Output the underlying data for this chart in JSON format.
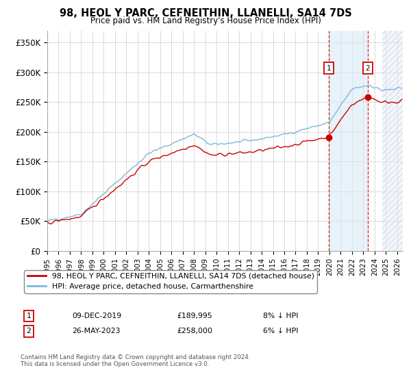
{
  "title": "98, HEOL Y PARC, CEFNEITHIN, LLANELLI, SA14 7DS",
  "subtitle": "Price paid vs. HM Land Registry's House Price Index (HPI)",
  "ylabel_ticks": [
    "£0",
    "£50K",
    "£100K",
    "£150K",
    "£200K",
    "£250K",
    "£300K",
    "£350K"
  ],
  "ytick_values": [
    0,
    50000,
    100000,
    150000,
    200000,
    250000,
    300000,
    350000
  ],
  "ylim": [
    0,
    370000
  ],
  "xlim_start": 1995.0,
  "xlim_end": 2026.5,
  "xtick_years": [
    1995,
    1996,
    1997,
    1998,
    1999,
    2000,
    2001,
    2002,
    2003,
    2004,
    2005,
    2006,
    2007,
    2008,
    2009,
    2010,
    2011,
    2012,
    2013,
    2014,
    2015,
    2016,
    2017,
    2018,
    2019,
    2020,
    2021,
    2022,
    2023,
    2024,
    2025,
    2026
  ],
  "marker1_x": 2019.94,
  "marker1_y": 189995,
  "marker2_x": 2023.4,
  "marker2_y": 258000,
  "marker1_label": "1",
  "marker2_label": "2",
  "marker1_date": "09-DEC-2019",
  "marker1_price": "£189,995",
  "marker1_hpi": "8% ↓ HPI",
  "marker2_date": "26-MAY-2023",
  "marker2_price": "£258,000",
  "marker2_hpi": "6% ↓ HPI",
  "hpi_line_color": "#7ab8d9",
  "sale_line_color": "#cc0000",
  "marker_box_color": "#cc0000",
  "grid_color": "#cccccc",
  "shaded_color": "#daeaf5",
  "legend_label1": "98, HEOL Y PARC, CEFNEITHIN, LLANELLI, SA14 7DS (detached house)",
  "legend_label2": "HPI: Average price, detached house, Carmarthenshire",
  "footnote": "Contains HM Land Registry data © Crown copyright and database right 2024.\nThis data is licensed under the Open Government Licence v3.0.",
  "background_color": "#ffffff",
  "future_start": 2024.67
}
